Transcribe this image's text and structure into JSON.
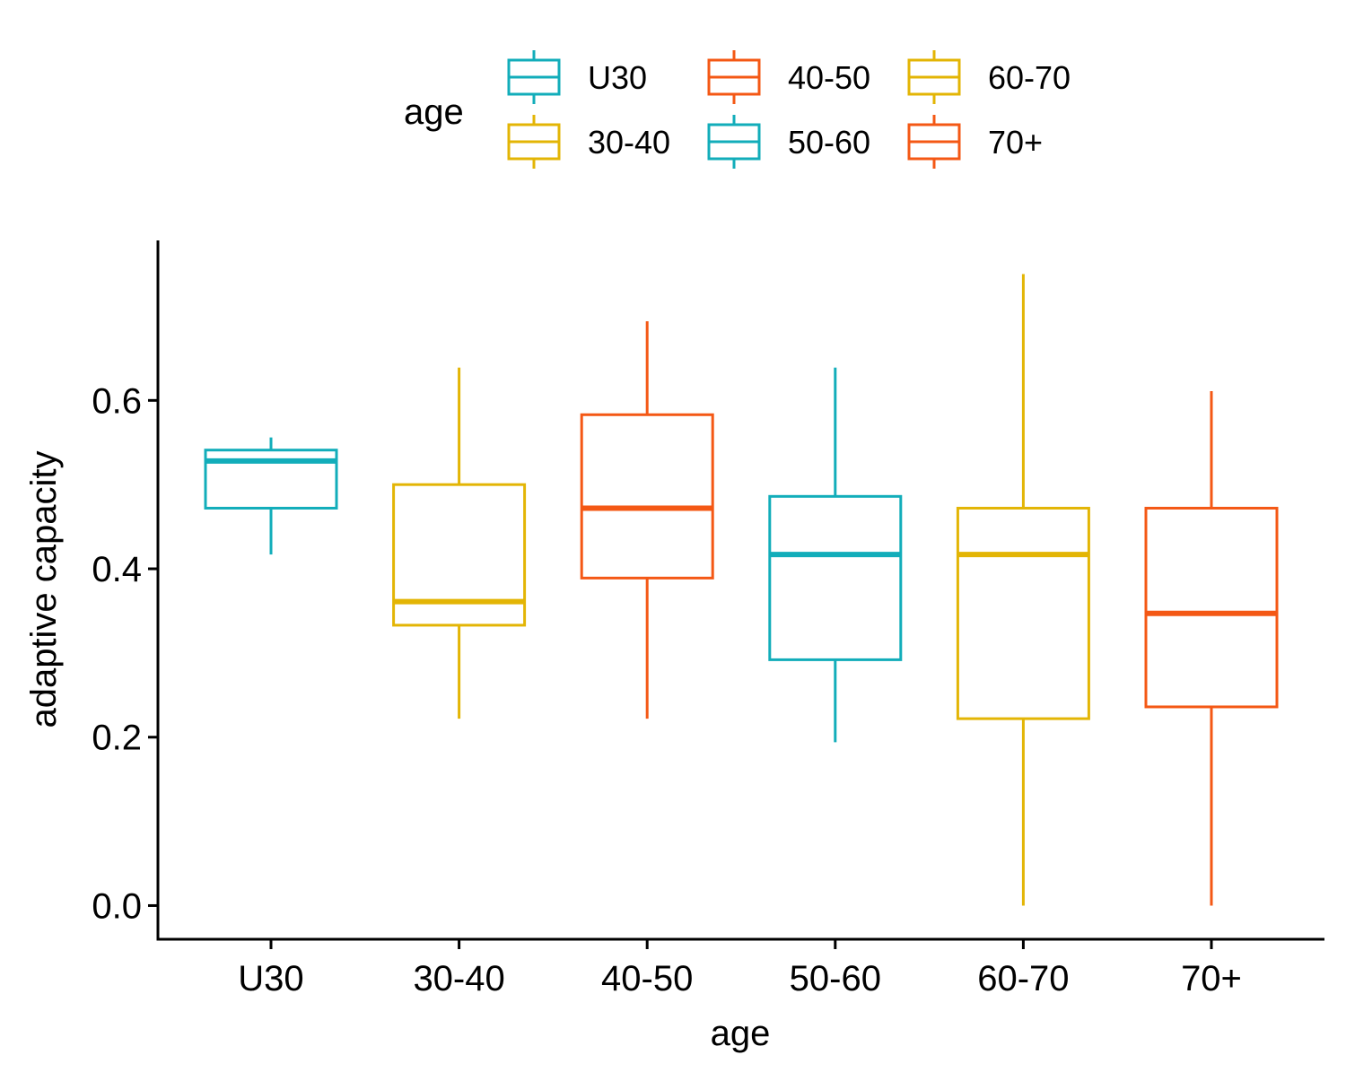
{
  "chart_data": {
    "type": "box",
    "title": "",
    "xlabel": "age",
    "ylabel": "adaptive capacity",
    "ylim": [
      -0.04,
      0.79
    ],
    "yticks": [
      0.0,
      0.2,
      0.4,
      0.6
    ],
    "ytick_labels": [
      "0.0",
      "0.2",
      "0.4",
      "0.6"
    ],
    "grid": false,
    "legend": {
      "title": "age",
      "placement": "top",
      "entries": [
        "U30",
        "30-40",
        "40-50",
        "50-60",
        "60-70",
        "70+"
      ]
    },
    "categories": [
      "U30",
      "30-40",
      "40-50",
      "50-60",
      "60-70",
      "70+"
    ],
    "colors": [
      "#12ADBA",
      "#E3B505",
      "#F45815",
      "#12ADBA",
      "#E3B505",
      "#F45815"
    ],
    "boxes": [
      {
        "category": "U30",
        "min": 0.417,
        "q1": 0.472,
        "median": 0.528,
        "q3": 0.541,
        "max": 0.556
      },
      {
        "category": "30-40",
        "min": 0.222,
        "q1": 0.333,
        "median": 0.361,
        "q3": 0.5,
        "max": 0.639
      },
      {
        "category": "40-50",
        "min": 0.222,
        "q1": 0.389,
        "median": 0.472,
        "q3": 0.583,
        "max": 0.694
      },
      {
        "category": "50-60",
        "min": 0.194,
        "q1": 0.292,
        "median": 0.417,
        "q3": 0.486,
        "max": 0.639
      },
      {
        "category": "60-70",
        "min": 0.0,
        "q1": 0.222,
        "median": 0.417,
        "q3": 0.472,
        "max": 0.75
      },
      {
        "category": "70+",
        "min": 0.0,
        "q1": 0.236,
        "median": 0.347,
        "q3": 0.472,
        "max": 0.611
      }
    ]
  }
}
